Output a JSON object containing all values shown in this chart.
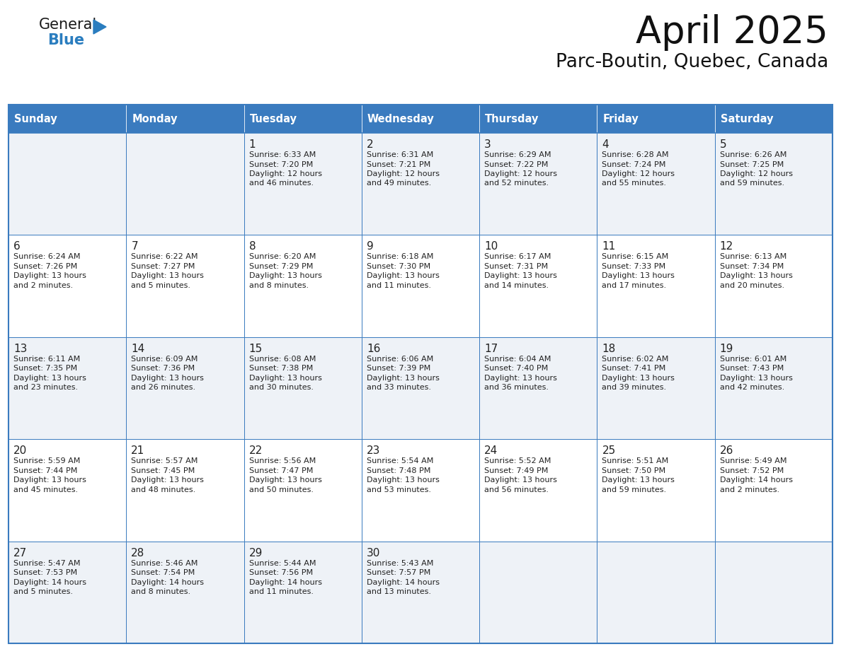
{
  "title": "April 2025",
  "subtitle": "Parc-Boutin, Quebec, Canada",
  "header_bg": "#3a7bbf",
  "header_text_color": "#ffffff",
  "row_bg_light": "#eef2f7",
  "row_bg_white": "#ffffff",
  "cell_border_color": "#3a7bbf",
  "day_headers": [
    "Sunday",
    "Monday",
    "Tuesday",
    "Wednesday",
    "Thursday",
    "Friday",
    "Saturday"
  ],
  "days": [
    {
      "date": 1,
      "col": 2,
      "row": 0,
      "sunrise": "6:33 AM",
      "sunset": "7:20 PM",
      "daylight": "12 hours",
      "daylight2": "and 46 minutes."
    },
    {
      "date": 2,
      "col": 3,
      "row": 0,
      "sunrise": "6:31 AM",
      "sunset": "7:21 PM",
      "daylight": "12 hours",
      "daylight2": "and 49 minutes."
    },
    {
      "date": 3,
      "col": 4,
      "row": 0,
      "sunrise": "6:29 AM",
      "sunset": "7:22 PM",
      "daylight": "12 hours",
      "daylight2": "and 52 minutes."
    },
    {
      "date": 4,
      "col": 5,
      "row": 0,
      "sunrise": "6:28 AM",
      "sunset": "7:24 PM",
      "daylight": "12 hours",
      "daylight2": "and 55 minutes."
    },
    {
      "date": 5,
      "col": 6,
      "row": 0,
      "sunrise": "6:26 AM",
      "sunset": "7:25 PM",
      "daylight": "12 hours",
      "daylight2": "and 59 minutes."
    },
    {
      "date": 6,
      "col": 0,
      "row": 1,
      "sunrise": "6:24 AM",
      "sunset": "7:26 PM",
      "daylight": "13 hours",
      "daylight2": "and 2 minutes."
    },
    {
      "date": 7,
      "col": 1,
      "row": 1,
      "sunrise": "6:22 AM",
      "sunset": "7:27 PM",
      "daylight": "13 hours",
      "daylight2": "and 5 minutes."
    },
    {
      "date": 8,
      "col": 2,
      "row": 1,
      "sunrise": "6:20 AM",
      "sunset": "7:29 PM",
      "daylight": "13 hours",
      "daylight2": "and 8 minutes."
    },
    {
      "date": 9,
      "col": 3,
      "row": 1,
      "sunrise": "6:18 AM",
      "sunset": "7:30 PM",
      "daylight": "13 hours",
      "daylight2": "and 11 minutes."
    },
    {
      "date": 10,
      "col": 4,
      "row": 1,
      "sunrise": "6:17 AM",
      "sunset": "7:31 PM",
      "daylight": "13 hours",
      "daylight2": "and 14 minutes."
    },
    {
      "date": 11,
      "col": 5,
      "row": 1,
      "sunrise": "6:15 AM",
      "sunset": "7:33 PM",
      "daylight": "13 hours",
      "daylight2": "and 17 minutes."
    },
    {
      "date": 12,
      "col": 6,
      "row": 1,
      "sunrise": "6:13 AM",
      "sunset": "7:34 PM",
      "daylight": "13 hours",
      "daylight2": "and 20 minutes."
    },
    {
      "date": 13,
      "col": 0,
      "row": 2,
      "sunrise": "6:11 AM",
      "sunset": "7:35 PM",
      "daylight": "13 hours",
      "daylight2": "and 23 minutes."
    },
    {
      "date": 14,
      "col": 1,
      "row": 2,
      "sunrise": "6:09 AM",
      "sunset": "7:36 PM",
      "daylight": "13 hours",
      "daylight2": "and 26 minutes."
    },
    {
      "date": 15,
      "col": 2,
      "row": 2,
      "sunrise": "6:08 AM",
      "sunset": "7:38 PM",
      "daylight": "13 hours",
      "daylight2": "and 30 minutes."
    },
    {
      "date": 16,
      "col": 3,
      "row": 2,
      "sunrise": "6:06 AM",
      "sunset": "7:39 PM",
      "daylight": "13 hours",
      "daylight2": "and 33 minutes."
    },
    {
      "date": 17,
      "col": 4,
      "row": 2,
      "sunrise": "6:04 AM",
      "sunset": "7:40 PM",
      "daylight": "13 hours",
      "daylight2": "and 36 minutes."
    },
    {
      "date": 18,
      "col": 5,
      "row": 2,
      "sunrise": "6:02 AM",
      "sunset": "7:41 PM",
      "daylight": "13 hours",
      "daylight2": "and 39 minutes."
    },
    {
      "date": 19,
      "col": 6,
      "row": 2,
      "sunrise": "6:01 AM",
      "sunset": "7:43 PM",
      "daylight": "13 hours",
      "daylight2": "and 42 minutes."
    },
    {
      "date": 20,
      "col": 0,
      "row": 3,
      "sunrise": "5:59 AM",
      "sunset": "7:44 PM",
      "daylight": "13 hours",
      "daylight2": "and 45 minutes."
    },
    {
      "date": 21,
      "col": 1,
      "row": 3,
      "sunrise": "5:57 AM",
      "sunset": "7:45 PM",
      "daylight": "13 hours",
      "daylight2": "and 48 minutes."
    },
    {
      "date": 22,
      "col": 2,
      "row": 3,
      "sunrise": "5:56 AM",
      "sunset": "7:47 PM",
      "daylight": "13 hours",
      "daylight2": "and 50 minutes."
    },
    {
      "date": 23,
      "col": 3,
      "row": 3,
      "sunrise": "5:54 AM",
      "sunset": "7:48 PM",
      "daylight": "13 hours",
      "daylight2": "and 53 minutes."
    },
    {
      "date": 24,
      "col": 4,
      "row": 3,
      "sunrise": "5:52 AM",
      "sunset": "7:49 PM",
      "daylight": "13 hours",
      "daylight2": "and 56 minutes."
    },
    {
      "date": 25,
      "col": 5,
      "row": 3,
      "sunrise": "5:51 AM",
      "sunset": "7:50 PM",
      "daylight": "13 hours",
      "daylight2": "and 59 minutes."
    },
    {
      "date": 26,
      "col": 6,
      "row": 3,
      "sunrise": "5:49 AM",
      "sunset": "7:52 PM",
      "daylight": "14 hours",
      "daylight2": "and 2 minutes."
    },
    {
      "date": 27,
      "col": 0,
      "row": 4,
      "sunrise": "5:47 AM",
      "sunset": "7:53 PM",
      "daylight": "14 hours",
      "daylight2": "and 5 minutes."
    },
    {
      "date": 28,
      "col": 1,
      "row": 4,
      "sunrise": "5:46 AM",
      "sunset": "7:54 PM",
      "daylight": "14 hours",
      "daylight2": "and 8 minutes."
    },
    {
      "date": 29,
      "col": 2,
      "row": 4,
      "sunrise": "5:44 AM",
      "sunset": "7:56 PM",
      "daylight": "14 hours",
      "daylight2": "and 11 minutes."
    },
    {
      "date": 30,
      "col": 3,
      "row": 4,
      "sunrise": "5:43 AM",
      "sunset": "7:57 PM",
      "daylight": "14 hours",
      "daylight2": "and 13 minutes."
    }
  ],
  "logo_text1": "General",
  "logo_text2": "Blue",
  "logo_color1": "#1a1a1a",
  "logo_color2": "#2a7dbf",
  "logo_triangle_color": "#2a7dbf"
}
